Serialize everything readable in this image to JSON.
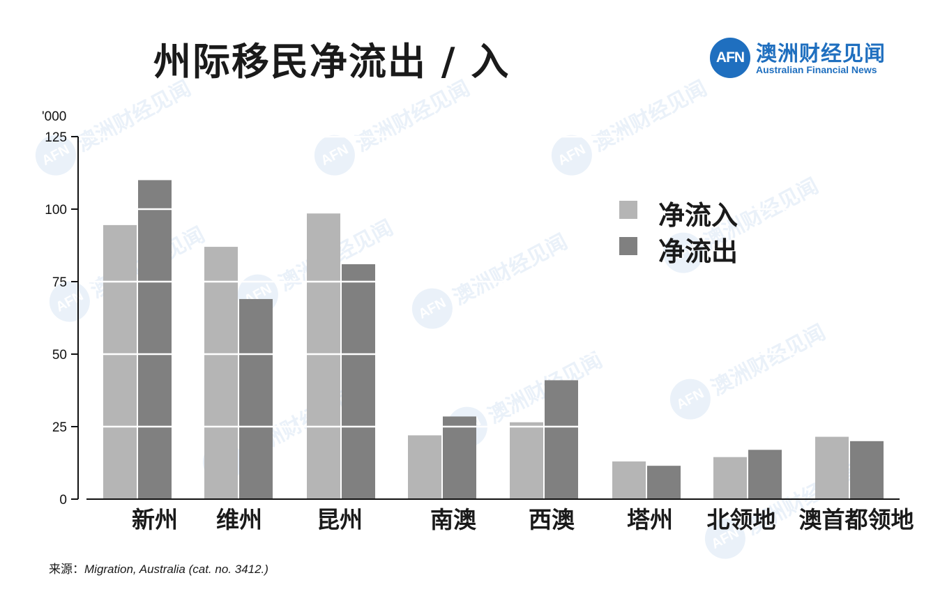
{
  "header": {
    "title": "州际移民净流出 / 入"
  },
  "logo": {
    "mark": "AFN",
    "name_cn": "澳洲财经见闻",
    "name_en": "Australian Financial News",
    "color": "#1f6fbf"
  },
  "chart_data": {
    "type": "bar",
    "unit_label": "'000",
    "categories": [
      "新州",
      "维州",
      "昆州",
      "南澳",
      "西澳",
      "塔州",
      "北领地",
      "澳首都领地"
    ],
    "series": [
      {
        "name": "净流入",
        "color": "#b5b5b5",
        "values": [
          94.5,
          87,
          98.5,
          22,
          26.5,
          13,
          14.5,
          21.5
        ]
      },
      {
        "name": "净流出",
        "color": "#808080",
        "values": [
          110,
          69,
          81,
          28.5,
          41,
          11.5,
          17,
          20
        ]
      }
    ],
    "ylim": [
      0,
      125
    ],
    "yticks": [
      0,
      25,
      50,
      75,
      100,
      125
    ],
    "grid": "white horizontal lines across bars",
    "legend_position": "top-right"
  },
  "source": {
    "label": "来源：",
    "text": "Migration, Australia (cat. no. 3412.)"
  }
}
